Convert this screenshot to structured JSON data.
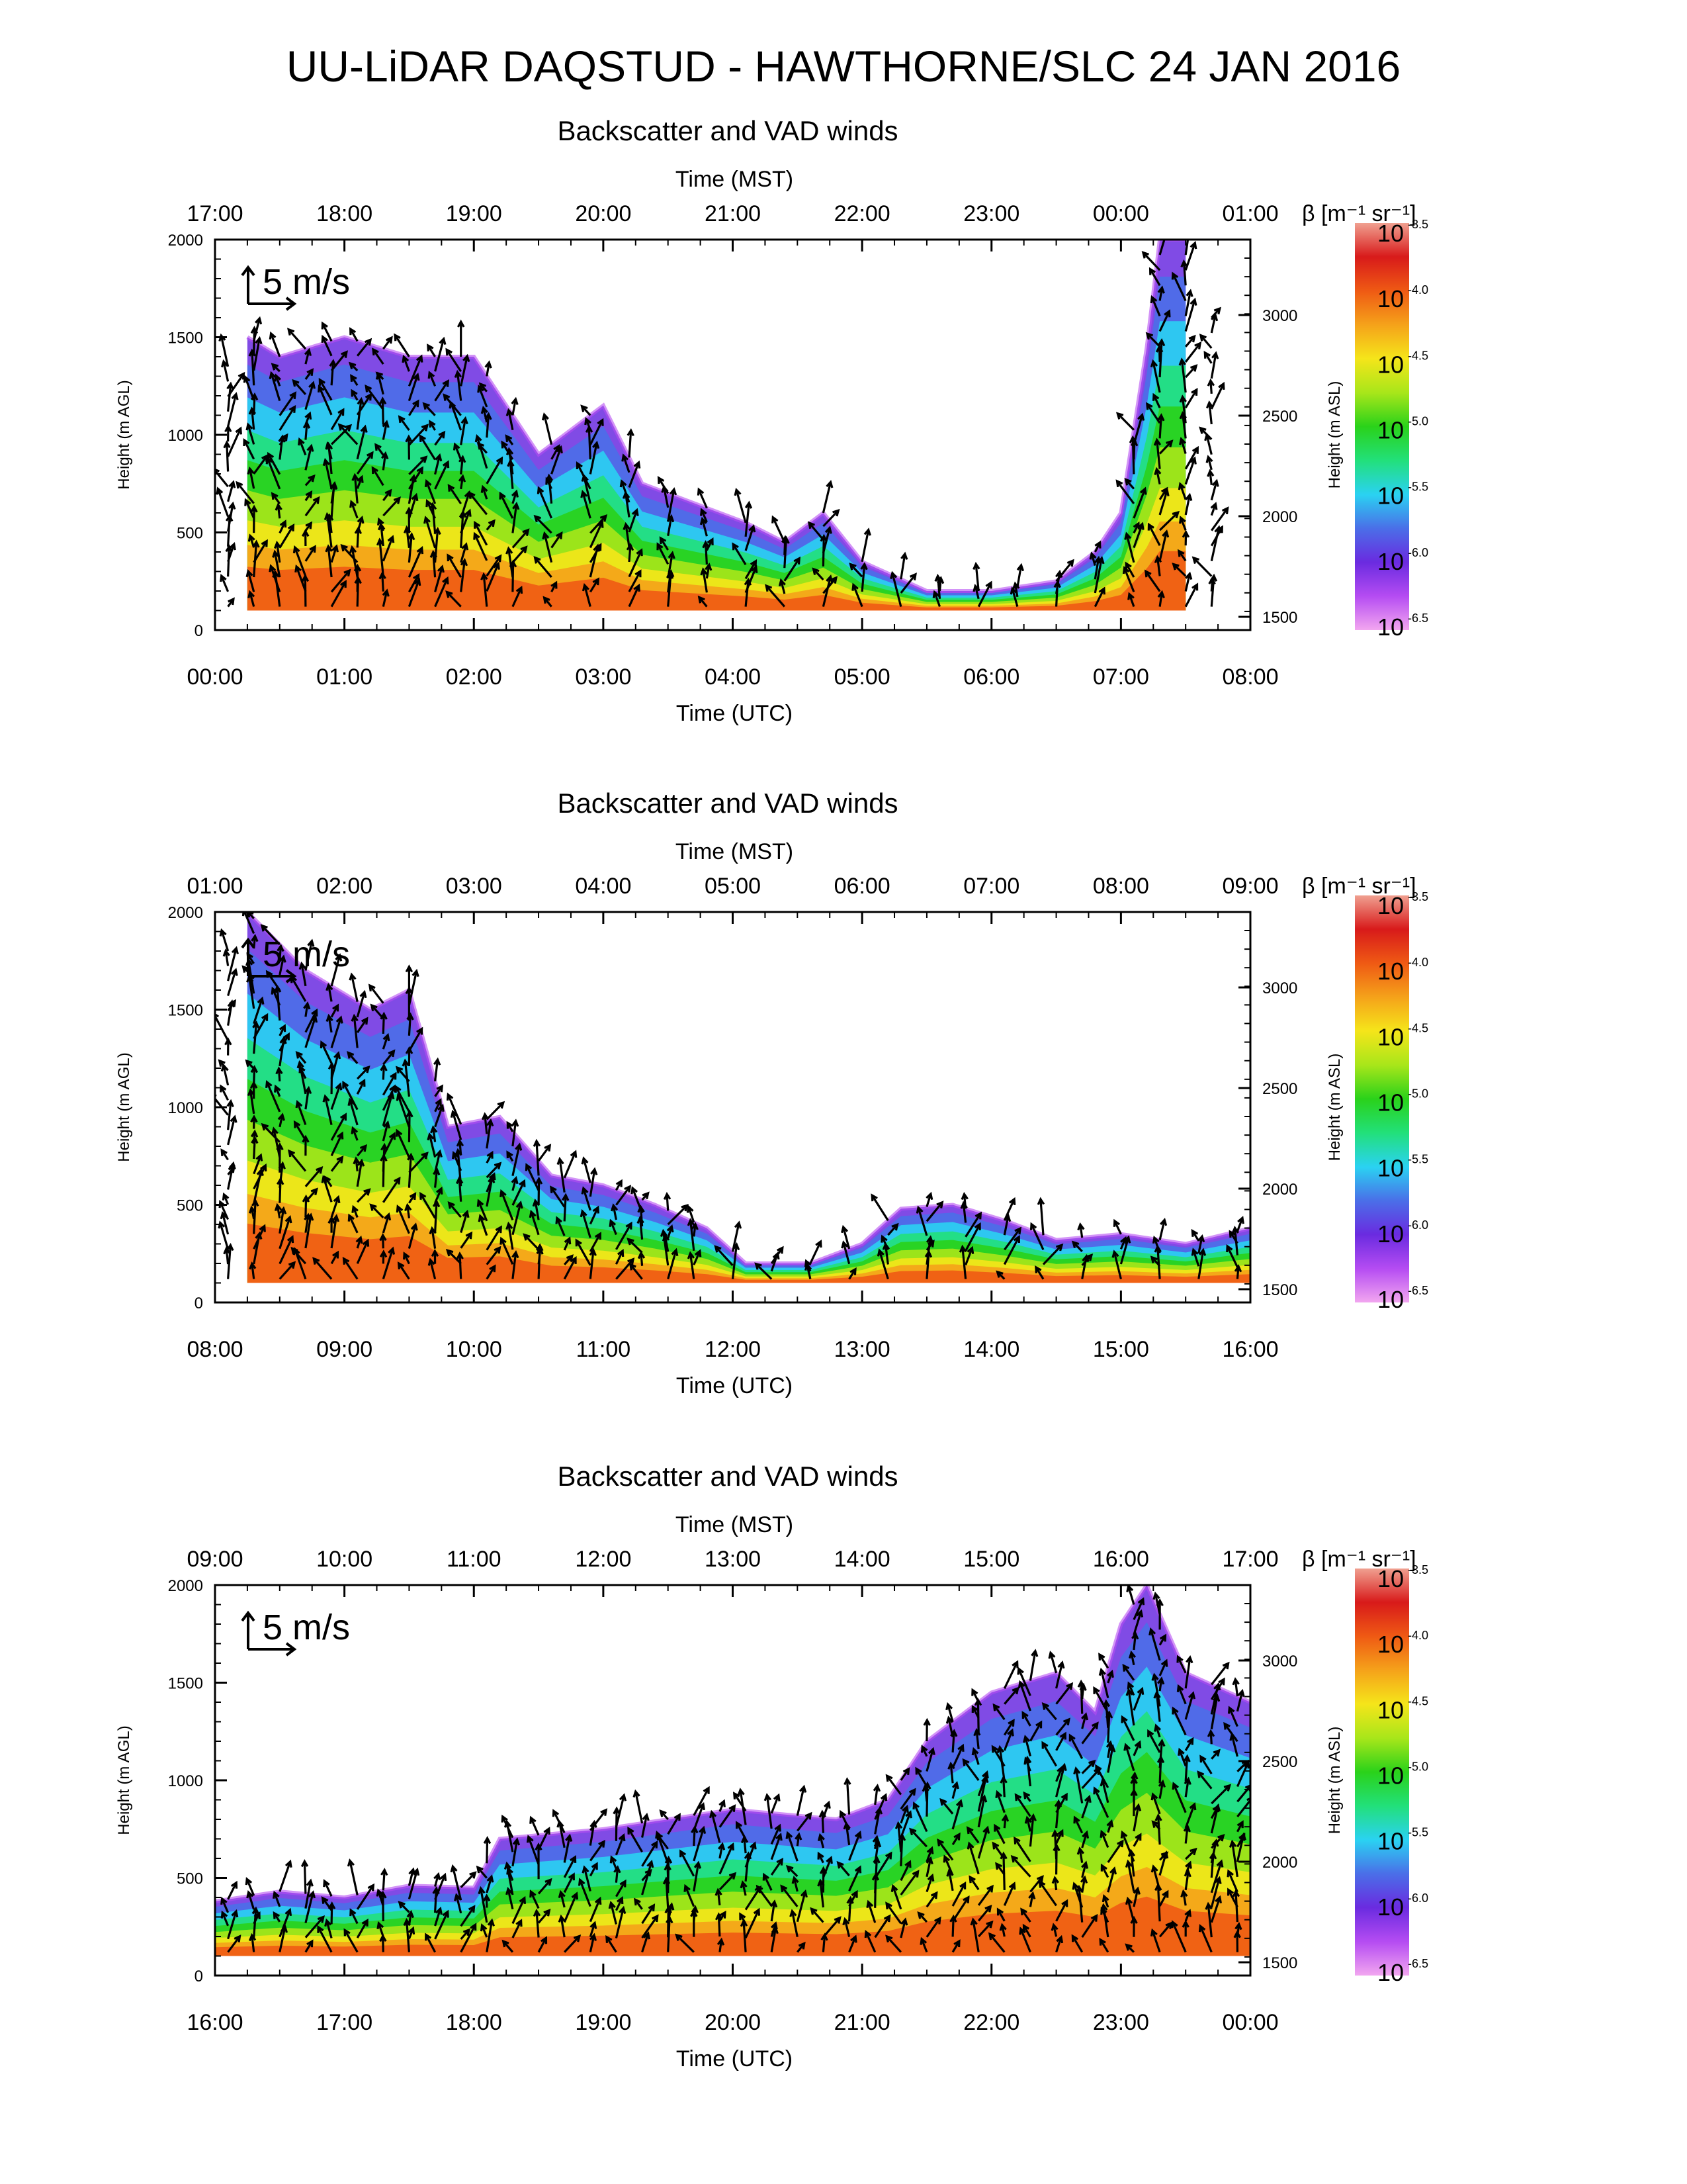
{
  "page_title": "UU-LiDAR DAQSTUD - HAWTHORNE/SLC 24 JAN 2016",
  "shared": {
    "panel_title": "Backscatter and VAD winds",
    "top_axis_label": "Time (MST)",
    "bottom_axis_label": "Time (UTC)",
    "left_axis_label": "Height (m AGL)",
    "right_axis_label": "Height (m ASL)",
    "wind_scale_label": "5 m/s",
    "colorbar_title": "β [m⁻¹ sr⁻¹]",
    "colorbar_base": "10",
    "colorbar_exponents": [
      "-3.5",
      "-4.0",
      "-4.5",
      "-5.0",
      "-5.5",
      "-6.0",
      "-6.5"
    ]
  },
  "colors": {
    "colormap": [
      "#f2a6f0",
      "#b54cf2",
      "#6a2be0",
      "#4a6fe8",
      "#2ad2f2",
      "#22e07a",
      "#2ad21a",
      "#a8e61a",
      "#f5e51a",
      "#f5a21a",
      "#ef5a14",
      "#d81a1a",
      "#f0a090"
    ],
    "arrow": "#000000"
  },
  "chart_data": [
    {
      "type": "heatmap",
      "title": "Backscatter and VAD winds",
      "x_utc_ticks": [
        "00:00",
        "01:00",
        "02:00",
        "03:00",
        "04:00",
        "05:00",
        "06:00",
        "07:00",
        "08:00"
      ],
      "x_mst_ticks": [
        "17:00",
        "18:00",
        "19:00",
        "20:00",
        "21:00",
        "22:00",
        "23:00",
        "00:00",
        "01:00"
      ],
      "y_agl_ticks": [
        "0",
        "500",
        "1000",
        "1500",
        "2000"
      ],
      "y_asl_ticks": [
        "1500",
        "2000",
        "2500",
        "3000"
      ],
      "xlim_hours_utc": [
        0,
        8
      ],
      "ylim_m_agl": [
        0,
        2000
      ],
      "colorbar_log10_range": [
        -6.5,
        -3.5
      ],
      "aerosol_layer_top_m_agl": [
        [
          0.25,
          1500
        ],
        [
          0.5,
          1400
        ],
        [
          1.0,
          1500
        ],
        [
          1.5,
          1400
        ],
        [
          2.0,
          1400
        ],
        [
          2.5,
          900
        ],
        [
          3.0,
          1150
        ],
        [
          3.3,
          750
        ],
        [
          3.7,
          650
        ],
        [
          4.1,
          550
        ],
        [
          4.4,
          450
        ],
        [
          4.7,
          600
        ],
        [
          5.0,
          350
        ],
        [
          5.5,
          200
        ],
        [
          6.0,
          200
        ],
        [
          6.5,
          250
        ],
        [
          6.8,
          400
        ],
        [
          7.0,
          600
        ],
        [
          7.2,
          1450
        ],
        [
          7.3,
          2000
        ],
        [
          7.5,
          2000
        ]
      ],
      "wind_profile_times_utc": [
        0.1,
        0.3,
        0.5,
        0.7,
        0.9,
        1.1,
        1.3,
        1.5,
        1.7,
        1.9,
        2.1,
        2.3,
        2.6,
        2.9,
        3.2,
        3.5,
        3.8,
        4.1,
        4.4,
        4.7,
        5.0,
        5.3,
        5.6,
        5.9,
        6.2,
        6.5,
        6.8,
        7.1,
        7.3,
        7.5,
        7.7
      ]
    },
    {
      "type": "heatmap",
      "title": "Backscatter and VAD winds",
      "x_utc_ticks": [
        "08:00",
        "09:00",
        "10:00",
        "11:00",
        "12:00",
        "13:00",
        "14:00",
        "15:00",
        "16:00"
      ],
      "x_mst_ticks": [
        "01:00",
        "02:00",
        "03:00",
        "04:00",
        "05:00",
        "06:00",
        "07:00",
        "08:00",
        "09:00"
      ],
      "y_agl_ticks": [
        "0",
        "500",
        "1000",
        "1500",
        "2000"
      ],
      "y_asl_ticks": [
        "1500",
        "2000",
        "2500",
        "3000"
      ],
      "xlim_hours_utc": [
        8,
        16
      ],
      "ylim_m_agl": [
        0,
        2000
      ],
      "colorbar_log10_range": [
        -6.5,
        -3.5
      ],
      "aerosol_layer_top_m_agl": [
        [
          8.25,
          2000
        ],
        [
          8.7,
          1700
        ],
        [
          9.2,
          1500
        ],
        [
          9.5,
          1600
        ],
        [
          9.8,
          900
        ],
        [
          10.2,
          950
        ],
        [
          10.6,
          650
        ],
        [
          11.0,
          600
        ],
        [
          11.4,
          500
        ],
        [
          11.8,
          380
        ],
        [
          12.1,
          200
        ],
        [
          12.6,
          200
        ],
        [
          13.0,
          300
        ],
        [
          13.3,
          480
        ],
        [
          13.7,
          500
        ],
        [
          14.1,
          420
        ],
        [
          14.5,
          320
        ],
        [
          15.0,
          350
        ],
        [
          15.5,
          300
        ],
        [
          16.0,
          380
        ]
      ],
      "wind_profile_times_utc": [
        8.1,
        8.3,
        8.5,
        8.7,
        8.9,
        9.1,
        9.3,
        9.5,
        9.7,
        9.9,
        10.1,
        10.3,
        10.5,
        10.7,
        10.9,
        11.1,
        11.3,
        11.5,
        11.7,
        12.0,
        12.3,
        12.6,
        12.9,
        13.2,
        13.5,
        13.8,
        14.1,
        14.4,
        14.7,
        15.0,
        15.3,
        15.6,
        15.9
      ]
    },
    {
      "type": "heatmap",
      "title": "Backscatter and VAD winds",
      "x_utc_ticks": [
        "16:00",
        "17:00",
        "18:00",
        "19:00",
        "20:00",
        "21:00",
        "22:00",
        "23:00",
        "00:00"
      ],
      "x_mst_ticks": [
        "09:00",
        "10:00",
        "11:00",
        "12:00",
        "13:00",
        "14:00",
        "15:00",
        "16:00",
        "17:00"
      ],
      "y_agl_ticks": [
        "0",
        "500",
        "1000",
        "1500",
        "2000"
      ],
      "y_asl_ticks": [
        "1500",
        "2000",
        "2500",
        "3000"
      ],
      "xlim_hours_utc": [
        16,
        24
      ],
      "ylim_m_agl": [
        0,
        2000
      ],
      "colorbar_log10_range": [
        -6.5,
        -3.5
      ],
      "aerosol_layer_top_m_agl": [
        [
          16.0,
          380
        ],
        [
          16.5,
          430
        ],
        [
          17.0,
          400
        ],
        [
          17.5,
          460
        ],
        [
          18.0,
          450
        ],
        [
          18.2,
          700
        ],
        [
          19.0,
          750
        ],
        [
          20.0,
          850
        ],
        [
          20.8,
          800
        ],
        [
          21.2,
          900
        ],
        [
          21.5,
          1200
        ],
        [
          22.0,
          1450
        ],
        [
          22.5,
          1550
        ],
        [
          22.8,
          1350
        ],
        [
          23.0,
          1800
        ],
        [
          23.2,
          2000
        ],
        [
          23.5,
          1550
        ],
        [
          24.0,
          1400
        ]
      ],
      "wind_profile_times_utc": [
        16.1,
        16.3,
        16.5,
        16.7,
        16.9,
        17.1,
        17.3,
        17.5,
        17.7,
        17.9,
        18.1,
        18.3,
        18.5,
        18.7,
        18.9,
        19.1,
        19.3,
        19.5,
        19.7,
        19.9,
        20.1,
        20.3,
        20.5,
        20.7,
        20.9,
        21.1,
        21.3,
        21.5,
        21.7,
        21.9,
        22.1,
        22.3,
        22.5,
        22.7,
        22.9,
        23.1,
        23.3,
        23.5,
        23.7,
        23.9
      ]
    }
  ]
}
